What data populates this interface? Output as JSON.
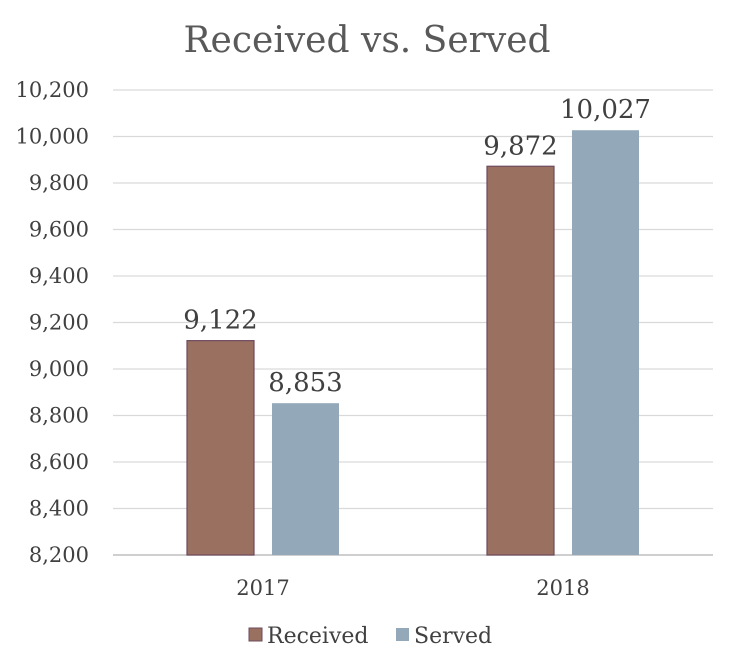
{
  "chart_data": {
    "type": "bar",
    "title": "Received vs. Served",
    "categories": [
      "2017",
      "2018"
    ],
    "series": [
      {
        "name": "Received",
        "values": [
          9122,
          9872
        ],
        "color": "#9a7060",
        "labels": [
          "9,122",
          "9,872"
        ]
      },
      {
        "name": "Served",
        "values": [
          8853,
          10027
        ],
        "color": "#93a9ba",
        "labels": [
          "8,853",
          "10,027"
        ]
      }
    ],
    "ylim": [
      8200,
      10200
    ],
    "yticks": [
      {
        "value": 8200,
        "label": "8,200"
      },
      {
        "value": 8400,
        "label": "8,400"
      },
      {
        "value": 8600,
        "label": "8,600"
      },
      {
        "value": 8800,
        "label": "8,800"
      },
      {
        "value": 9000,
        "label": "9,000"
      },
      {
        "value": 9200,
        "label": "9,200"
      },
      {
        "value": 9400,
        "label": "9,400"
      },
      {
        "value": 9600,
        "label": "9,600"
      },
      {
        "value": 9800,
        "label": "9,800"
      },
      {
        "value": 10000,
        "label": "10,000"
      },
      {
        "value": 10200,
        "label": "10,200"
      }
    ],
    "grid": true,
    "legend": "bottom",
    "xlabel": "",
    "ylabel": ""
  }
}
